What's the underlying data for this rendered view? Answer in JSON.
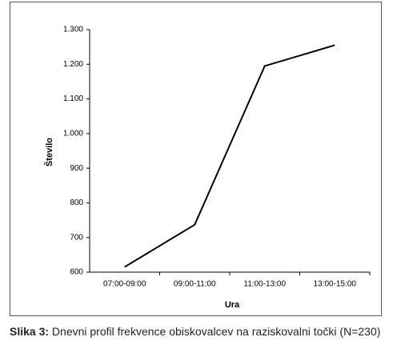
{
  "chart_data": {
    "type": "line",
    "x_label": "Ura",
    "y_label": "Število",
    "categories": [
      "07:00-09:00",
      "09:00-11:00",
      "11:00-13:00",
      "13:00-15:00"
    ],
    "values": [
      615,
      737,
      1195,
      1255
    ],
    "color": "#000000",
    "ylim": [
      600,
      1300
    ],
    "yticks": [
      600,
      700,
      800,
      900,
      {
        "value": 1000,
        "label": "1.000"
      },
      {
        "value": 1100,
        "label": "1.100"
      },
      {
        "value": 1200,
        "label": "1.200"
      },
      {
        "value": 1300,
        "label": "1.300"
      }
    ],
    "grid": false,
    "caption_label": "Slika 3:",
    "caption": "Dnevni profil frekvence obiskovalcev na raziskovalni točki (N=230)"
  }
}
